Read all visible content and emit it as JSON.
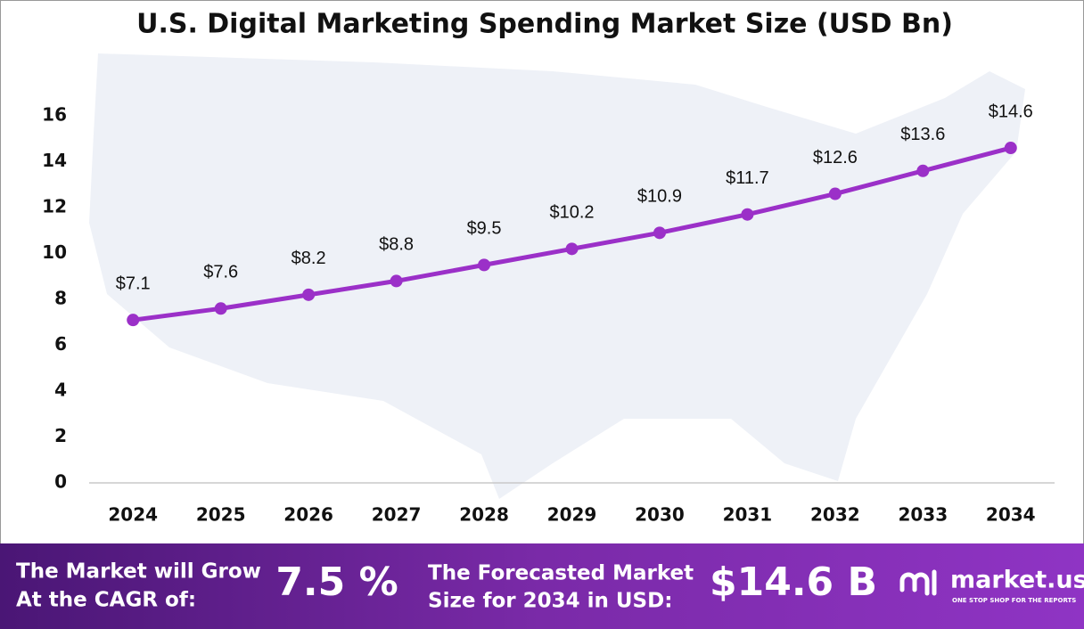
{
  "chart_data": {
    "type": "line",
    "title": "U.S. Digital Marketing Spending Market Size (USD Bn)",
    "categories": [
      "2024",
      "2025",
      "2026",
      "2027",
      "2028",
      "2029",
      "2030",
      "2031",
      "2032",
      "2033",
      "2034"
    ],
    "values": [
      7.1,
      7.6,
      8.2,
      8.8,
      9.5,
      10.2,
      10.9,
      11.7,
      12.6,
      13.6,
      14.6
    ],
    "value_labels": [
      "$7.1",
      "$7.6",
      "$8.2",
      "$8.8",
      "$9.5",
      "$10.2",
      "$10.9",
      "$11.7",
      "$12.6",
      "$13.6",
      "$14.6"
    ],
    "color": "#9b30c8",
    "ylim": [
      0,
      16
    ],
    "yticks": [
      0,
      2,
      4,
      6,
      8,
      10,
      12,
      14,
      16
    ],
    "grid": false
  },
  "footer": {
    "cagr_text": [
      "The Market will Grow",
      "At the CAGR of:"
    ],
    "cagr_value": "7.5 %",
    "forecast_text": [
      "The Forecasted Market",
      "Size for 2034 in USD:"
    ],
    "forecast_value": "$14.6 B",
    "logo": "market.us",
    "tagline": "ONE STOP SHOP FOR THE REPORTS"
  }
}
